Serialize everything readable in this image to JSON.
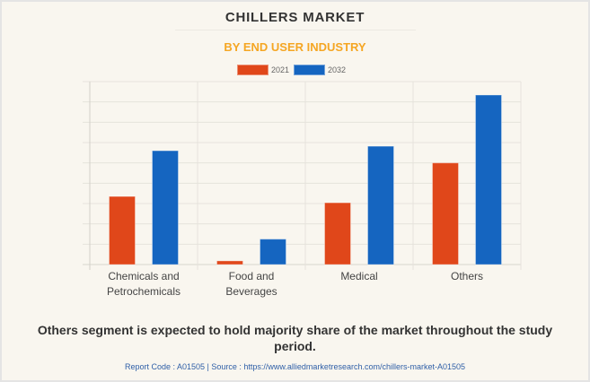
{
  "header": {
    "title": "CHILLERS MARKET",
    "subtitle": "BY END USER INDUSTRY"
  },
  "chart_data": {
    "type": "bar",
    "title": "CHILLERS MARKET",
    "subtitle": "BY END USER INDUSTRY",
    "xlabel": "",
    "ylabel": "",
    "y_axis_labels_shown": false,
    "grid": true,
    "legend_position": "top-center",
    "ylim": [
      0,
      9
    ],
    "y_units": "relative (gridline units, no axis values shown)",
    "categories": [
      [
        "Chemicals and",
        "Petrochemicals"
      ],
      [
        "Food and",
        "Beverages"
      ],
      [
        "Medical"
      ],
      [
        "Others"
      ]
    ],
    "series": [
      {
        "name": "2021",
        "color": "#e0471a",
        "values": [
          3.35,
          0.18,
          3.04,
          5.0
        ]
      },
      {
        "name": "2032",
        "color": "#1565c0",
        "values": [
          5.6,
          1.25,
          5.82,
          8.34
        ]
      }
    ]
  },
  "footer": {
    "note": "Others segment is expected to hold majority share of the market throughout the study period.",
    "source": "Report Code : A01505  |  Source : https://www.alliedmarketresearch.com/chillers-market-A01505"
  },
  "colors": {
    "background": "#f9f6ef",
    "title": "#333333",
    "subtitle": "#f5a623",
    "source_link": "#2f5fa7"
  }
}
